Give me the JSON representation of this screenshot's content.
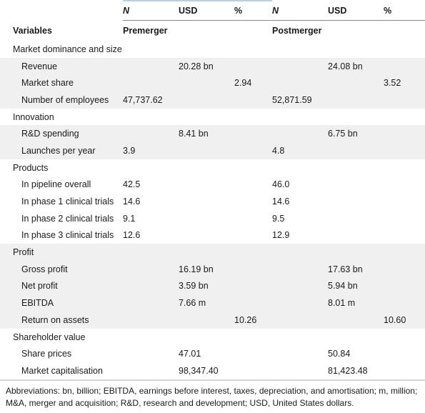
{
  "header": {
    "top": [
      "",
      "N",
      "USD",
      "%",
      "N",
      "USD",
      "%"
    ],
    "variables_label": "Variables",
    "premerger_label": "Premerger",
    "postmerger_label": "Postmerger"
  },
  "rows": [
    {
      "type": "section",
      "label": "Market dominance and size",
      "cells": [
        "",
        "",
        "",
        "",
        "",
        ""
      ]
    },
    {
      "type": "item",
      "label": "Revenue",
      "cells": [
        "",
        "20.28 bn",
        "",
        "",
        "24.08 bn",
        ""
      ]
    },
    {
      "type": "item",
      "label": "Market share",
      "cells": [
        "",
        "",
        "2.94",
        "",
        "",
        "3.52"
      ]
    },
    {
      "type": "item",
      "label": "Number of employees",
      "cells": [
        "47,737.62",
        "",
        "",
        "52,871.59",
        "",
        ""
      ]
    },
    {
      "type": "section",
      "label": "Innovation",
      "cells": [
        "",
        "",
        "",
        "",
        "",
        ""
      ]
    },
    {
      "type": "item",
      "label": "R&D spending",
      "cells": [
        "",
        "8.41 bn",
        "",
        "",
        "6.75 bn",
        ""
      ]
    },
    {
      "type": "item",
      "label": "Launches per year",
      "cells": [
        "3.9",
        "",
        "",
        "4.8",
        "",
        ""
      ]
    },
    {
      "type": "section",
      "label": "Products",
      "cells": [
        "",
        "",
        "",
        "",
        "",
        ""
      ]
    },
    {
      "type": "item",
      "label": "In pipeline overall",
      "cells": [
        "42.5",
        "",
        "",
        "46.0",
        "",
        ""
      ]
    },
    {
      "type": "item",
      "label": "In phase 1 clinical trials",
      "cells": [
        "14.6",
        "",
        "",
        "14.6",
        "",
        ""
      ]
    },
    {
      "type": "item",
      "label": "In phase 2 clinical trials",
      "cells": [
        "9.1",
        "",
        "",
        "9.5",
        "",
        ""
      ]
    },
    {
      "type": "item",
      "label": "In phase 3 clinical trials",
      "cells": [
        "12.6",
        "",
        "",
        "12.9",
        "",
        ""
      ]
    },
    {
      "type": "section",
      "label": "Profit",
      "cells": [
        "",
        "",
        "",
        "",
        "",
        ""
      ]
    },
    {
      "type": "item",
      "label": "Gross profit",
      "cells": [
        "",
        "16.19 bn",
        "",
        "",
        "17.63 bn",
        ""
      ]
    },
    {
      "type": "item",
      "label": "Net profit",
      "cells": [
        "",
        "3.59 bn",
        "",
        "",
        "5.94 bn",
        ""
      ]
    },
    {
      "type": "item",
      "label": "EBITDA",
      "cells": [
        "",
        "7.66 m",
        "",
        "",
        "8.01 m",
        ""
      ]
    },
    {
      "type": "item",
      "label": "Return on assets",
      "cells": [
        "",
        "",
        "10.26",
        "",
        "",
        "10.60"
      ]
    },
    {
      "type": "section",
      "label": "Shareholder value",
      "cells": [
        "",
        "",
        "",
        "",
        "",
        ""
      ]
    },
    {
      "type": "item",
      "label": "Share prices",
      "cells": [
        "",
        "47.01",
        "",
        "",
        "50.84",
        ""
      ]
    },
    {
      "type": "item",
      "label": "Market capitalisation",
      "cells": [
        "",
        "98,347.40",
        "",
        "",
        "81,423.48",
        ""
      ]
    }
  ],
  "row_shading": [
    "w",
    "g",
    "g",
    "g",
    "w",
    "g",
    "g",
    "w",
    "w",
    "w",
    "w",
    "w",
    "g",
    "g",
    "g",
    "g",
    "g",
    "w",
    "w",
    "w"
  ],
  "footnote": "Abbreviations: bn, billion; EBITDA, earnings before interest, taxes, depreciation, and amortisation; m, million; M&A, merger and acquisition; R&D, research and development; USD, United States dollars."
}
